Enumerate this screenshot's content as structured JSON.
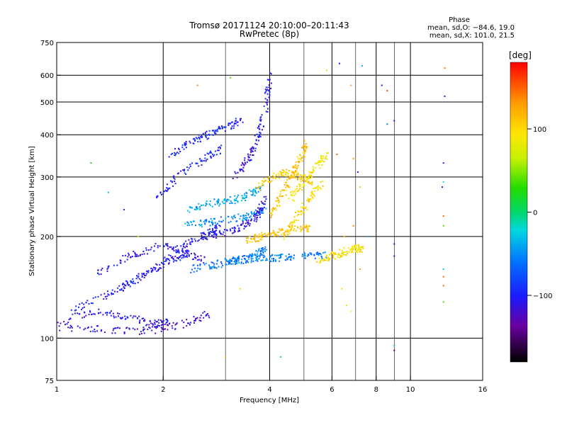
{
  "chart_data": {
    "type": "scatter",
    "title": "Tromsø 20171124 20:10:00–20:11:43",
    "subtitle": "RwPretec (8p)",
    "xlabel": "Frequency [MHz]",
    "ylabel": "Stationary phase Virtual Height [km]",
    "x_scale": "log",
    "y_scale": "log",
    "xlim": [
      1,
      16
    ],
    "ylim": [
      75,
      750
    ],
    "x_ticks": [
      1,
      2,
      4,
      6,
      8,
      10,
      16
    ],
    "x_tick_labels": [
      "1",
      "2",
      "4",
      "6",
      "8",
      "10",
      "16"
    ],
    "x_grid": [
      2,
      4,
      6,
      8,
      10
    ],
    "x_minor": [
      3,
      5,
      7,
      9
    ],
    "y_ticks": [
      75,
      100,
      200,
      300,
      400,
      500,
      600,
      750
    ],
    "y_tick_labels": [
      "75",
      "100",
      "200",
      "300",
      "400",
      "500",
      "600",
      "750"
    ],
    "y_grid": [
      100,
      200,
      300,
      400,
      500,
      600
    ],
    "grid": true,
    "stats": {
      "title": "Phase",
      "line1": "mean, sd,O: −84.6, 19.0",
      "line2": "mean, sd,X: 101.0, 21.5"
    },
    "colorbar": {
      "label": "[deg]",
      "range": [
        -180,
        180
      ],
      "ticks": [
        100,
        0,
        -100
      ],
      "tick_labels": [
        "100",
        "0",
        "−100"
      ]
    },
    "series": [
      {
        "traces": [
          {
            "x": [
              1.0,
              1.3,
              1.6,
              1.9,
              2.05
            ],
            "y": [
              112,
              120,
              115,
              110,
              112
            ],
            "phase": -110
          },
          {
            "x": [
              1.0,
              1.4,
              1.8,
              2.3,
              2.7
            ],
            "y": [
              108,
              106,
              105,
              110,
              118
            ],
            "phase": -115
          },
          {
            "x": [
              1.1,
              1.4,
              1.7,
              2.0,
              2.4
            ],
            "y": [
              120,
              135,
              150,
              165,
              180
            ],
            "phase": -105
          },
          {
            "x": [
              1.3,
              1.6,
              2.0,
              2.3,
              2.6
            ],
            "y": [
              155,
              175,
              190,
              180,
              170
            ],
            "phase": -108
          },
          {
            "x": [
              1.5,
              1.9,
              2.3,
              2.6,
              2.9
            ],
            "y": [
              140,
              160,
              190,
              200,
              215
            ],
            "phase": -102
          },
          {
            "x": [
              1.9,
              2.2,
              2.6,
              3.0
            ],
            "y": [
              260,
              300,
              340,
              370
            ],
            "phase": -100
          },
          {
            "x": [
              2.1,
              2.4,
              2.7,
              3.0,
              3.3
            ],
            "y": [
              350,
              380,
              400,
              420,
              440
            ],
            "phase": -98
          },
          {
            "x": [
              2.3,
              2.7,
              3.1,
              3.5,
              3.8
            ],
            "y": [
              240,
              250,
              255,
              265,
              280
            ],
            "phase": -40
          },
          {
            "x": [
              2.3,
              2.7,
              3.1,
              3.5,
              3.9
            ],
            "y": [
              215,
              220,
              225,
              230,
              240
            ],
            "phase": -45
          },
          {
            "x": [
              2.4,
              2.8,
              3.2,
              3.6,
              3.9
            ],
            "y": [
              160,
              165,
              170,
              175,
              185
            ],
            "phase": -60
          },
          {
            "x": [
              2.6,
              3.0,
              3.4,
              3.7,
              3.9
            ],
            "y": [
              200,
              205,
              215,
              230,
              260
            ],
            "phase": -108
          },
          {
            "x": [
              3.0,
              3.4,
              3.8,
              4.3,
              5.0,
              5.8
            ],
            "y": [
              168,
              170,
              172,
              173,
              175,
              176
            ],
            "phase": -55
          },
          {
            "x": [
              3.2,
              3.5,
              3.7,
              3.9,
              4.0
            ],
            "y": [
              300,
              340,
              390,
              480,
              600
            ],
            "phase": -108
          },
          {
            "x": [
              3.5,
              3.8,
              4.2,
              4.7,
              5.2
            ],
            "y": [
              195,
              200,
              205,
              210,
              212
            ],
            "phase": 110
          },
          {
            "x": [
              3.7,
              4.1,
              4.5,
              4.9,
              5.3
            ],
            "y": [
              280,
              300,
              310,
              300,
              290
            ],
            "phase": 105
          },
          {
            "x": [
              4.0,
              4.3,
              4.6,
              4.9,
              5.1
            ],
            "y": [
              230,
              260,
              300,
              340,
              380
            ],
            "phase": 112
          },
          {
            "x": [
              4.4,
              4.8,
              5.2,
              5.6
            ],
            "y": [
              200,
              230,
              260,
              290
            ],
            "phase": 100
          },
          {
            "x": [
              4.6,
              5.0,
              5.4,
              5.8
            ],
            "y": [
              260,
              290,
              320,
              350
            ],
            "phase": 90
          },
          {
            "x": [
              5.5,
              6.0,
              6.5,
              7.0,
              7.3
            ],
            "y": [
              170,
              175,
              180,
              185,
              182
            ],
            "phase": 95
          }
        ]
      }
    ],
    "outliers": [
      {
        "x": 1.4,
        "y": 270,
        "phase": -30
      },
      {
        "x": 1.25,
        "y": 330,
        "phase": 20
      },
      {
        "x": 1.55,
        "y": 240,
        "phase": -95
      },
      {
        "x": 1.7,
        "y": 200,
        "phase": 60
      },
      {
        "x": 2.5,
        "y": 560,
        "phase": 140
      },
      {
        "x": 3.1,
        "y": 590,
        "phase": 40
      },
      {
        "x": 3.3,
        "y": 140,
        "phase": 100
      },
      {
        "x": 3.0,
        "y": 88,
        "phase": 110
      },
      {
        "x": 4.3,
        "y": 88,
        "phase": -10
      },
      {
        "x": 5.8,
        "y": 620,
        "phase": 80
      },
      {
        "x": 6.3,
        "y": 650,
        "phase": -100
      },
      {
        "x": 6.8,
        "y": 560,
        "phase": 130
      },
      {
        "x": 7.3,
        "y": 640,
        "phase": -40
      },
      {
        "x": 8.3,
        "y": 560,
        "phase": -110
      },
      {
        "x": 8.6,
        "y": 540,
        "phase": 160
      },
      {
        "x": 8.6,
        "y": 430,
        "phase": -60
      },
      {
        "x": 9.0,
        "y": 440,
        "phase": -100
      },
      {
        "x": 6.2,
        "y": 350,
        "phase": 150
      },
      {
        "x": 6.9,
        "y": 340,
        "phase": 130
      },
      {
        "x": 7.1,
        "y": 310,
        "phase": -100
      },
      {
        "x": 7.2,
        "y": 280,
        "phase": 110
      },
      {
        "x": 9.0,
        "y": 190,
        "phase": -110
      },
      {
        "x": 9.0,
        "y": 175,
        "phase": -100
      },
      {
        "x": 9.0,
        "y": 95,
        "phase": -20
      },
      {
        "x": 9.0,
        "y": 92,
        "phase": -150
      },
      {
        "x": 12.5,
        "y": 630,
        "phase": 140
      },
      {
        "x": 12.5,
        "y": 520,
        "phase": -110
      },
      {
        "x": 12.4,
        "y": 330,
        "phase": -100
      },
      {
        "x": 12.4,
        "y": 290,
        "phase": -20
      },
      {
        "x": 12.3,
        "y": 280,
        "phase": -120
      },
      {
        "x": 12.4,
        "y": 230,
        "phase": 150
      },
      {
        "x": 12.4,
        "y": 215,
        "phase": 40
      },
      {
        "x": 12.4,
        "y": 160,
        "phase": -20
      },
      {
        "x": 12.4,
        "y": 152,
        "phase": 150
      },
      {
        "x": 12.4,
        "y": 143,
        "phase": 150
      },
      {
        "x": 12.4,
        "y": 128,
        "phase": 40
      },
      {
        "x": 6.5,
        "y": 200,
        "phase": 120
      },
      {
        "x": 6.9,
        "y": 215,
        "phase": 140
      },
      {
        "x": 6.4,
        "y": 140,
        "phase": 100
      },
      {
        "x": 6.6,
        "y": 125,
        "phase": 80
      },
      {
        "x": 6.8,
        "y": 120,
        "phase": 90
      },
      {
        "x": 7.2,
        "y": 160,
        "phase": 130
      },
      {
        "x": 7.6,
        "y": 200,
        "phase": -40
      }
    ]
  }
}
